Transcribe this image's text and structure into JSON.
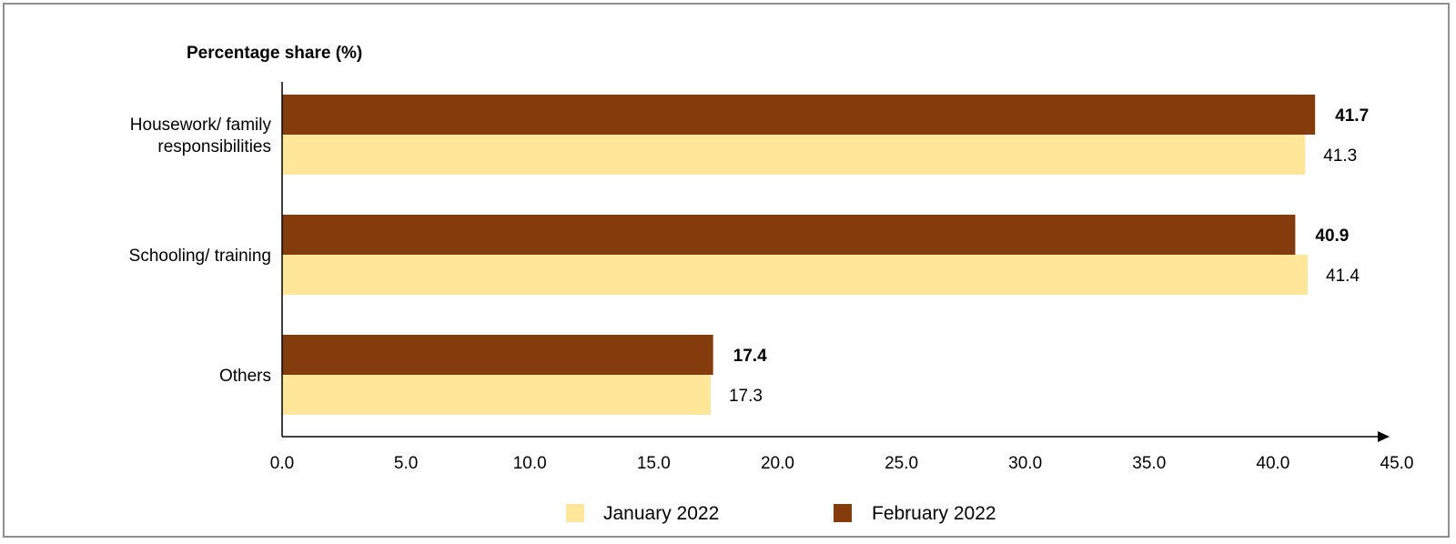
{
  "chart_data": {
    "type": "bar",
    "orientation": "horizontal",
    "title": "",
    "ylabel": "Percentage share (%)",
    "xlabel": "",
    "xlim": [
      0,
      45
    ],
    "x_ticks": [
      "0.0",
      "5.0",
      "10.0",
      "15.0",
      "20.0",
      "25.0",
      "30.0",
      "35.0",
      "40.0",
      "45.0"
    ],
    "categories": [
      [
        "Housework/ family",
        "responsibilities"
      ],
      [
        "Schooling/ training"
      ],
      [
        "Others"
      ]
    ],
    "series": [
      {
        "name": "January 2022",
        "color": "#FFE699",
        "values": [
          41.3,
          41.4,
          17.3
        ],
        "labels": [
          "41.3",
          "41.4",
          "17.3"
        ]
      },
      {
        "name": "February 2022",
        "color": "#843C0C",
        "values": [
          41.7,
          40.9,
          17.4
        ],
        "labels": [
          "41.7",
          "40.9",
          "17.4"
        ]
      }
    ],
    "grid": false,
    "legend_position": "bottom"
  }
}
